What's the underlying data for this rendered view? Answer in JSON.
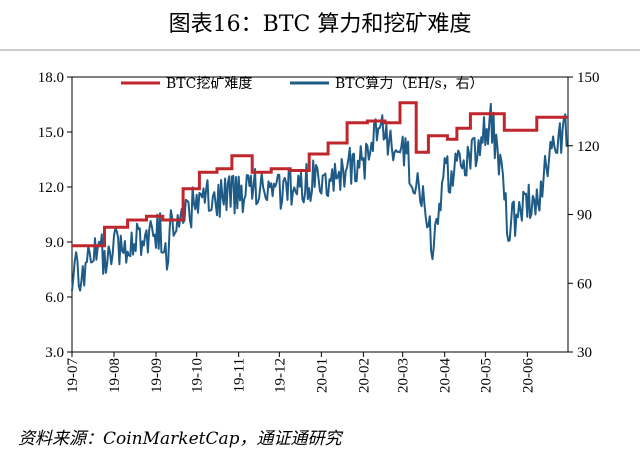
{
  "chart_data": {
    "type": "line",
    "title": "图表16：BTC 算力和挖矿难度",
    "source": "资料来源：CoinMarketCap，通证通研究",
    "x_tick_labels": [
      "19-07",
      "19-08",
      "19-09",
      "19-10",
      "19-11",
      "19-12",
      "20-01",
      "20-02",
      "20-03",
      "20-04",
      "20-05",
      "20-06"
    ],
    "x_range": [
      "2019-07-01",
      "2020-06-30"
    ],
    "left_axis": {
      "ylim": [
        3.0,
        18.0
      ],
      "ticks": [
        "3.0",
        "6.0",
        "9.0",
        "12.0",
        "15.0",
        "18.0"
      ]
    },
    "right_axis": {
      "ylim": [
        30,
        150
      ],
      "ticks": [
        "30",
        "60",
        "90",
        "120",
        "150"
      ]
    },
    "legend_position": "top",
    "series": [
      {
        "name": "BTC挖矿难度",
        "axis": "left",
        "color": "#c0272d",
        "style": "step",
        "steps": [
          {
            "from": "2019-07-01",
            "value": 8.8
          },
          {
            "from": "2019-07-25",
            "value": 9.8
          },
          {
            "from": "2019-08-11",
            "value": 10.2
          },
          {
            "from": "2019-08-25",
            "value": 10.4
          },
          {
            "from": "2019-09-06",
            "value": 10.2
          },
          {
            "from": "2019-09-21",
            "value": 11.9
          },
          {
            "from": "2019-10-03",
            "value": 12.8
          },
          {
            "from": "2019-10-16",
            "value": 13.0
          },
          {
            "from": "2019-10-27",
            "value": 13.7
          },
          {
            "from": "2019-11-11",
            "value": 12.8
          },
          {
            "from": "2019-11-25",
            "value": 13.0
          },
          {
            "from": "2019-12-09",
            "value": 12.9
          },
          {
            "from": "2019-12-23",
            "value": 13.8
          },
          {
            "from": "2020-01-06",
            "value": 14.4
          },
          {
            "from": "2020-01-20",
            "value": 15.5
          },
          {
            "from": "2020-02-04",
            "value": 15.6
          },
          {
            "from": "2020-02-17",
            "value": 15.5
          },
          {
            "from": "2020-02-28",
            "value": 16.6
          },
          {
            "from": "2020-03-11",
            "value": 13.9
          },
          {
            "from": "2020-03-20",
            "value": 14.8
          },
          {
            "from": "2020-04-03",
            "value": 14.6
          },
          {
            "from": "2020-04-10",
            "value": 15.2
          },
          {
            "from": "2020-04-20",
            "value": 16.0
          },
          {
            "from": "2020-05-07",
            "value": 16.0
          },
          {
            "from": "2020-05-15",
            "value": 15.1
          },
          {
            "from": "2020-06-01",
            "value": 15.1
          },
          {
            "from": "2020-06-08",
            "value": 15.8
          }
        ]
      },
      {
        "name": "BTC算力（EH/s，右）",
        "axis": "right",
        "color": "#1f5b87",
        "style": "line",
        "key_points": [
          {
            "x": "2019-07-01",
            "y": 65
          },
          {
            "x": "2019-07-03",
            "y": 70
          },
          {
            "x": "2019-07-05",
            "y": 63
          },
          {
            "x": "2019-07-07",
            "y": 56
          },
          {
            "x": "2019-07-10",
            "y": 68
          },
          {
            "x": "2019-07-15",
            "y": 72
          },
          {
            "x": "2019-07-25",
            "y": 73
          },
          {
            "x": "2019-08-10",
            "y": 78
          },
          {
            "x": "2019-08-25",
            "y": 81
          },
          {
            "x": "2019-09-05",
            "y": 82
          },
          {
            "x": "2019-09-07",
            "y": 68
          },
          {
            "x": "2019-09-12",
            "y": 85
          },
          {
            "x": "2019-09-25",
            "y": 92
          },
          {
            "x": "2019-10-05",
            "y": 96
          },
          {
            "x": "2019-10-20",
            "y": 98
          },
          {
            "x": "2019-11-05",
            "y": 100
          },
          {
            "x": "2019-11-20",
            "y": 102
          },
          {
            "x": "2019-12-05",
            "y": 101
          },
          {
            "x": "2019-12-20",
            "y": 104
          },
          {
            "x": "2020-01-05",
            "y": 106
          },
          {
            "x": "2020-01-20",
            "y": 110
          },
          {
            "x": "2020-02-05",
            "y": 114
          },
          {
            "x": "2020-02-13",
            "y": 130
          },
          {
            "x": "2020-02-20",
            "y": 118
          },
          {
            "x": "2020-03-02",
            "y": 120
          },
          {
            "x": "2020-03-10",
            "y": 105
          },
          {
            "x": "2020-03-17",
            "y": 95
          },
          {
            "x": "2020-03-23",
            "y": 77
          },
          {
            "x": "2020-03-31",
            "y": 105
          },
          {
            "x": "2020-04-15",
            "y": 115
          },
          {
            "x": "2020-04-28",
            "y": 120
          },
          {
            "x": "2020-05-05",
            "y": 133
          },
          {
            "x": "2020-05-12",
            "y": 110
          },
          {
            "x": "2020-05-18",
            "y": 85
          },
          {
            "x": "2020-05-28",
            "y": 92
          },
          {
            "x": "2020-06-10",
            "y": 100
          },
          {
            "x": "2020-06-20",
            "y": 120
          },
          {
            "x": "2020-06-30",
            "y": 127
          }
        ]
      }
    ]
  }
}
